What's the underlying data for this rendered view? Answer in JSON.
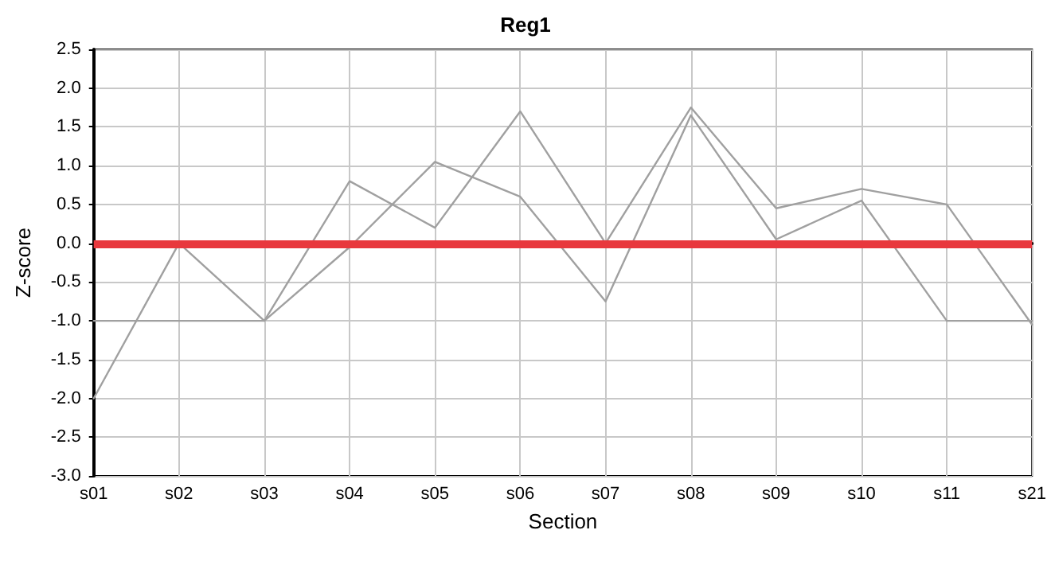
{
  "chart_data": {
    "type": "line",
    "title": "Reg1",
    "xlabel": "Section",
    "ylabel": "Z-score",
    "categories": [
      "s01",
      "s02",
      "s03",
      "s04",
      "s05",
      "s06",
      "s07",
      "s08",
      "s09",
      "s10",
      "s11",
      "s21"
    ],
    "series": [
      {
        "color": "#a0a0a0",
        "values": [
          -2.0,
          0,
          -1.0,
          0.8,
          0.2,
          1.7,
          0,
          1.75,
          0.45,
          0.7,
          0.5,
          -1.05
        ]
      },
      {
        "color": "#a0a0a0",
        "values": [
          -1.0,
          -1.0,
          -1.0,
          -0.05,
          1.05,
          0.6,
          -0.75,
          1.65,
          0.05,
          0.55,
          -1.0,
          -1.0
        ]
      }
    ],
    "ylim": [
      -3.0,
      2.5
    ],
    "yticks": [
      {
        "value": -3,
        "label": "-3.0"
      },
      {
        "value": -2.5,
        "label": "-2.5"
      },
      {
        "value": -2,
        "label": "-2.0"
      },
      {
        "value": -1.5,
        "label": "-1.5"
      },
      {
        "value": -1,
        "label": "-1.0"
      },
      {
        "value": -0.5,
        "label": "-0.5"
      },
      {
        "value": 0,
        "label": "0.0"
      },
      {
        "value": 0.5,
        "label": "0.5"
      },
      {
        "value": 1,
        "label": "1.0"
      },
      {
        "value": 1.5,
        "label": "1.5"
      },
      {
        "value": 2,
        "label": "2.0"
      },
      {
        "value": 2.5,
        "label": "2.5"
      }
    ],
    "ref_lines": [
      {
        "axis": "y",
        "value": 0,
        "color": "#e8383d"
      }
    ],
    "grid": true,
    "marker": "none",
    "line_style": "solid"
  }
}
